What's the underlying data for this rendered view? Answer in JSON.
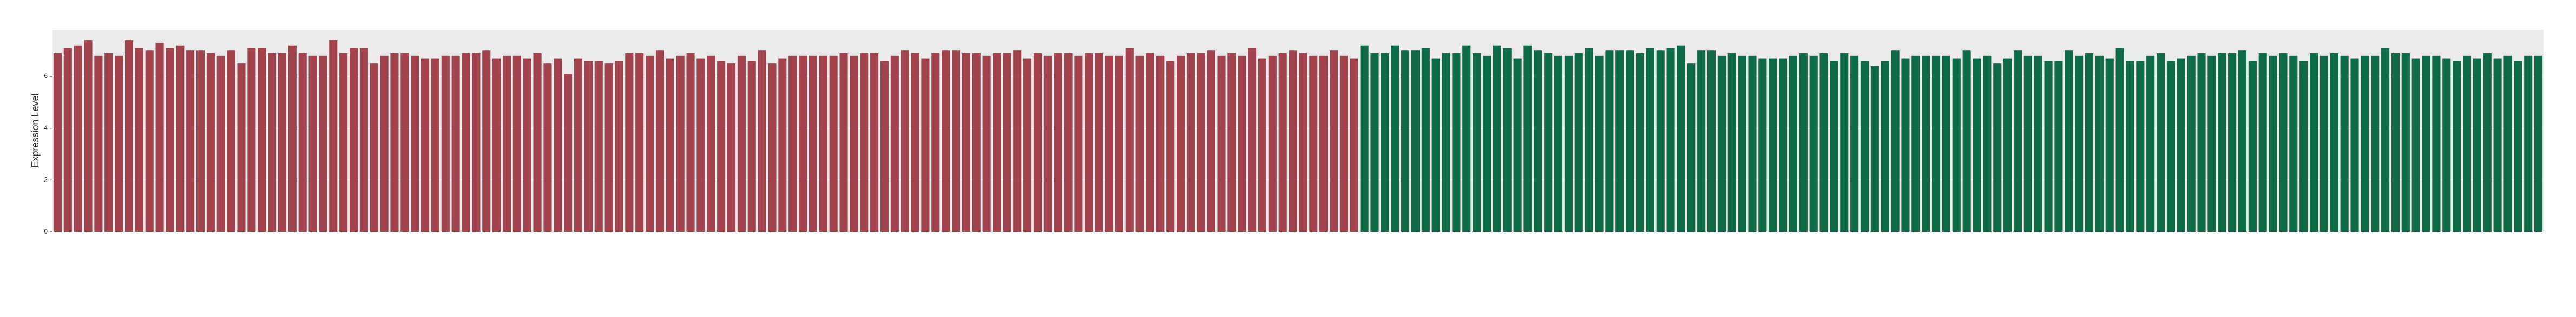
{
  "chart_data": {
    "type": "bar",
    "y_label": "Expression Level",
    "ylim": [
      0,
      7.8
    ],
    "yticks": [
      0,
      2,
      4,
      6
    ],
    "grid": true,
    "categories": [
      null,
      null,
      null,
      null,
      null,
      null,
      null,
      null,
      null,
      null,
      null,
      null,
      null,
      null,
      null,
      null,
      null,
      null,
      null,
      null,
      null,
      null,
      null,
      null,
      null,
      null,
      null,
      null,
      null,
      null,
      null,
      null,
      null,
      null,
      null,
      null,
      null,
      null,
      null,
      null,
      null,
      null,
      null,
      null,
      null,
      null,
      null,
      null,
      null,
      null,
      null,
      null,
      null,
      null,
      null,
      null,
      null,
      null,
      null,
      null,
      null,
      null,
      null,
      null,
      null,
      null,
      null,
      null,
      null,
      null,
      null,
      null,
      null,
      null,
      null,
      null,
      null,
      null,
      null,
      null,
      null,
      null,
      null,
      null,
      null,
      null,
      null,
      null,
      null,
      null,
      null,
      null,
      null,
      null,
      null,
      null,
      null,
      null,
      null,
      null,
      null,
      null,
      null,
      null,
      null,
      null,
      null,
      null,
      null,
      null,
      null,
      null,
      null,
      null,
      null,
      null,
      null,
      null,
      null,
      null,
      null,
      null,
      null,
      null,
      null,
      null,
      null,
      null,
      null,
      null,
      null,
      null,
      null,
      null,
      null,
      null,
      null,
      null,
      null,
      null,
      null,
      null,
      null,
      null,
      null,
      null,
      null,
      null,
      null,
      null,
      null,
      null,
      null,
      null,
      null,
      null,
      null,
      null,
      null,
      null,
      null,
      null,
      null,
      null,
      null,
      null,
      null,
      null,
      null,
      null,
      null,
      null,
      null,
      null,
      null,
      null,
      null,
      null,
      null,
      null,
      null,
      null,
      null,
      null,
      null,
      null,
      null,
      null,
      null,
      null,
      null,
      null,
      null,
      null,
      null,
      null,
      null,
      null,
      null,
      null,
      null,
      null,
      null,
      null,
      null,
      null,
      null,
      null,
      null,
      null,
      null,
      null,
      null,
      null,
      null,
      null,
      null,
      null,
      null,
      null,
      null,
      null,
      null,
      null,
      null,
      null,
      null,
      null,
      null,
      null,
      null,
      null,
      null,
      null,
      null,
      null,
      null,
      null,
      null,
      null,
      null,
      null,
      null,
      null
    ],
    "series": [
      {
        "color": "#a0434d",
        "values": [
          6.9,
          7.1,
          7.2,
          7.4,
          6.8,
          6.9,
          6.8,
          7.4,
          7.1,
          7.0,
          7.3,
          7.1,
          7.2,
          7.0,
          7.0,
          6.9,
          6.8,
          7.0,
          6.5,
          7.1,
          7.1,
          6.9,
          6.9,
          7.2,
          6.9,
          6.8,
          6.8,
          7.4,
          6.9,
          7.1,
          7.1,
          6.5,
          6.8,
          6.9,
          6.9,
          6.8,
          6.7,
          6.7,
          6.8,
          6.8,
          6.9,
          6.9,
          7.0,
          6.7,
          6.8,
          6.8,
          6.7,
          6.9,
          6.5,
          6.7,
          6.1,
          6.7,
          6.6,
          6.6,
          6.5,
          6.6,
          6.9,
          6.9,
          6.8,
          7.0,
          6.7,
          6.8,
          6.9,
          6.7,
          6.8,
          6.6,
          6.5,
          6.8,
          6.6,
          7.0,
          6.5,
          6.7,
          6.8,
          6.8,
          6.8,
          6.8,
          6.8,
          6.9,
          6.8,
          6.9,
          6.9,
          6.6,
          6.8,
          7.0,
          6.9,
          6.7,
          6.9,
          7.0,
          7.0,
          6.9,
          6.9,
          6.8,
          6.9,
          6.9,
          7.0,
          6.7,
          6.9,
          6.8,
          6.9,
          6.9,
          6.8,
          6.9,
          6.9,
          6.8,
          6.8,
          7.1,
          6.8,
          6.9,
          6.8,
          6.6,
          6.8,
          6.9,
          6.9,
          7.0,
          6.8,
          6.9,
          6.8,
          7.1,
          6.7,
          6.8,
          6.9,
          7.0,
          6.9,
          6.8,
          6.8,
          7.0,
          6.8,
          6.7,
          null,
          null,
          null,
          null,
          null,
          null,
          null,
          null,
          null,
          null,
          null,
          null,
          null,
          null,
          null,
          null,
          null,
          null,
          null,
          null,
          null,
          null,
          null,
          null,
          null,
          null,
          null,
          null,
          null,
          null,
          null,
          null,
          null,
          null,
          null,
          null,
          null,
          null,
          null,
          null,
          null,
          null,
          null,
          null,
          null,
          null,
          null,
          null,
          null,
          null,
          null,
          null,
          null,
          null,
          null,
          null,
          null,
          null,
          null,
          null,
          null,
          null,
          null,
          null,
          null,
          null,
          null,
          null,
          null,
          null,
          null,
          null,
          null,
          null,
          null,
          null,
          null,
          null,
          null,
          null,
          null,
          null,
          null,
          null,
          null,
          null,
          null,
          null,
          null,
          null,
          null,
          null,
          null,
          null,
          null,
          null,
          null,
          null,
          null,
          null,
          null,
          null,
          null,
          null,
          null,
          null,
          null,
          null,
          null,
          null,
          null,
          null,
          null,
          null,
          null,
          null
        ]
      },
      {
        "color": "#0f6a47",
        "values": [
          null,
          null,
          null,
          null,
          null,
          null,
          null,
          null,
          null,
          null,
          null,
          null,
          null,
          null,
          null,
          null,
          null,
          null,
          null,
          null,
          null,
          null,
          null,
          null,
          null,
          null,
          null,
          null,
          null,
          null,
          null,
          null,
          null,
          null,
          null,
          null,
          null,
          null,
          null,
          null,
          null,
          null,
          null,
          null,
          null,
          null,
          null,
          null,
          null,
          null,
          null,
          null,
          null,
          null,
          null,
          null,
          null,
          null,
          null,
          null,
          null,
          null,
          null,
          null,
          null,
          null,
          null,
          null,
          null,
          null,
          null,
          null,
          null,
          null,
          null,
          null,
          null,
          null,
          null,
          null,
          null,
          null,
          null,
          null,
          null,
          null,
          null,
          null,
          null,
          null,
          null,
          null,
          null,
          null,
          null,
          null,
          null,
          null,
          null,
          null,
          null,
          null,
          null,
          null,
          null,
          null,
          null,
          null,
          null,
          null,
          null,
          null,
          null,
          null,
          null,
          null,
          null,
          null,
          null,
          null,
          null,
          null,
          null,
          null,
          null,
          null,
          null,
          null,
          7.2,
          6.9,
          6.9,
          7.2,
          7.0,
          7.0,
          7.1,
          6.7,
          6.9,
          6.9,
          7.2,
          6.9,
          6.8,
          7.2,
          7.1,
          6.7,
          7.2,
          7.0,
          6.9,
          6.8,
          6.8,
          6.9,
          7.1,
          6.8,
          7.0,
          7.0,
          7.0,
          6.9,
          7.1,
          7.0,
          7.1,
          7.2,
          6.5,
          7.0,
          7.0,
          6.8,
          6.9,
          6.8,
          6.8,
          6.7,
          6.7,
          6.7,
          6.8,
          6.9,
          6.8,
          6.9,
          6.6,
          6.9,
          6.8,
          6.6,
          6.4,
          6.6,
          7.0,
          6.7,
          6.8,
          6.8,
          6.8,
          6.8,
          6.7,
          7.0,
          6.7,
          6.8,
          6.5,
          6.7,
          7.0,
          6.8,
          6.8,
          6.6,
          6.6,
          7.0,
          6.8,
          6.9,
          6.8,
          6.7,
          7.1,
          6.6,
          6.6,
          6.8,
          6.9,
          6.6,
          6.7,
          6.8,
          6.9,
          6.8,
          6.9,
          6.9,
          7.0,
          6.6,
          6.9,
          6.8,
          6.9,
          6.8,
          6.6,
          6.9,
          6.8,
          6.9,
          6.8,
          6.7,
          6.8,
          6.8,
          7.1,
          6.9,
          6.9,
          6.7,
          6.8,
          6.8,
          6.7,
          6.6,
          6.8,
          6.7,
          6.9,
          6.7,
          6.8,
          6.6,
          6.8,
          6.8
        ]
      }
    ]
  }
}
